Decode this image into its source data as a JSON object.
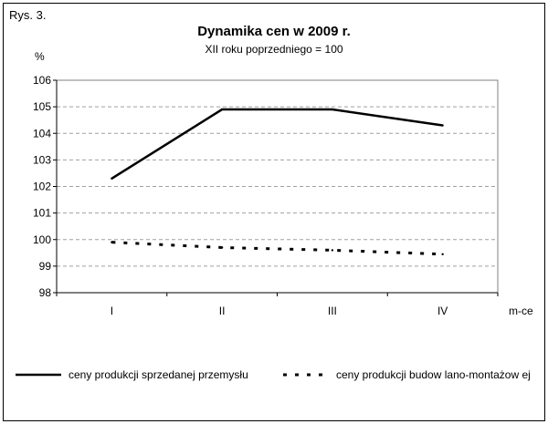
{
  "figure_label": "Rys. 3.",
  "chart_data": {
    "type": "line",
    "title": "Dynamika cen w 2009 r.",
    "subtitle": "XII roku poprzedniego = 100",
    "ylabel": "%",
    "xlabel": "m-ce",
    "categories": [
      "I",
      "II",
      "III",
      "IV"
    ],
    "ylim": [
      98,
      106
    ],
    "yticks": [
      98,
      99,
      100,
      101,
      102,
      103,
      104,
      105,
      106
    ],
    "grid": true,
    "legend_position": "bottom",
    "series": [
      {
        "name": "ceny produkcji sprzedanej przemysłu",
        "values": [
          102.3,
          104.9,
          104.9,
          104.3
        ],
        "style": "solid",
        "color": "#000000"
      },
      {
        "name": "ceny produkcji budow lano-montażow ej",
        "values": [
          99.9,
          99.7,
          99.6,
          99.45
        ],
        "style": "dashed",
        "color": "#000000"
      }
    ]
  }
}
